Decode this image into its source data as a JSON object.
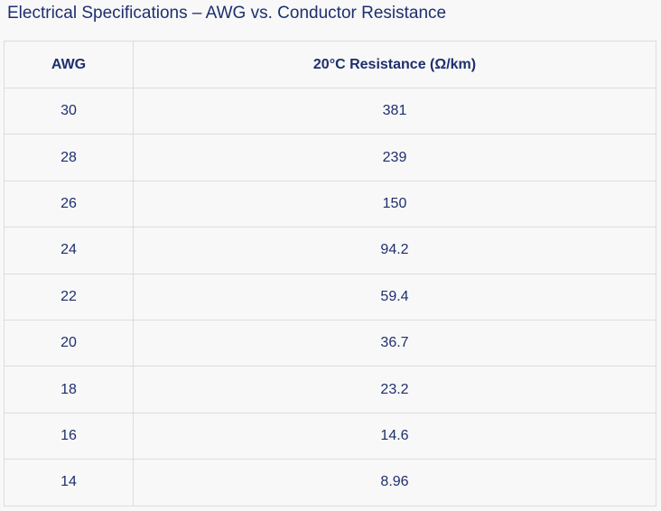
{
  "title": "Electrical Specifications – AWG vs. Conductor Resistance",
  "table": {
    "headers": [
      "AWG",
      "20°C Resistance (Ω/km)"
    ],
    "rows": [
      [
        "30",
        "381"
      ],
      [
        "28",
        "239"
      ],
      [
        "26",
        "150"
      ],
      [
        "24",
        "94.2"
      ],
      [
        "22",
        "59.4"
      ],
      [
        "20",
        "36.7"
      ],
      [
        "18",
        "23.2"
      ],
      [
        "16",
        "14.6"
      ],
      [
        "14",
        "8.96"
      ]
    ]
  },
  "colors": {
    "text": "#1e2f6e",
    "background": "#f8f8f8",
    "border": "#dcdcdc"
  }
}
